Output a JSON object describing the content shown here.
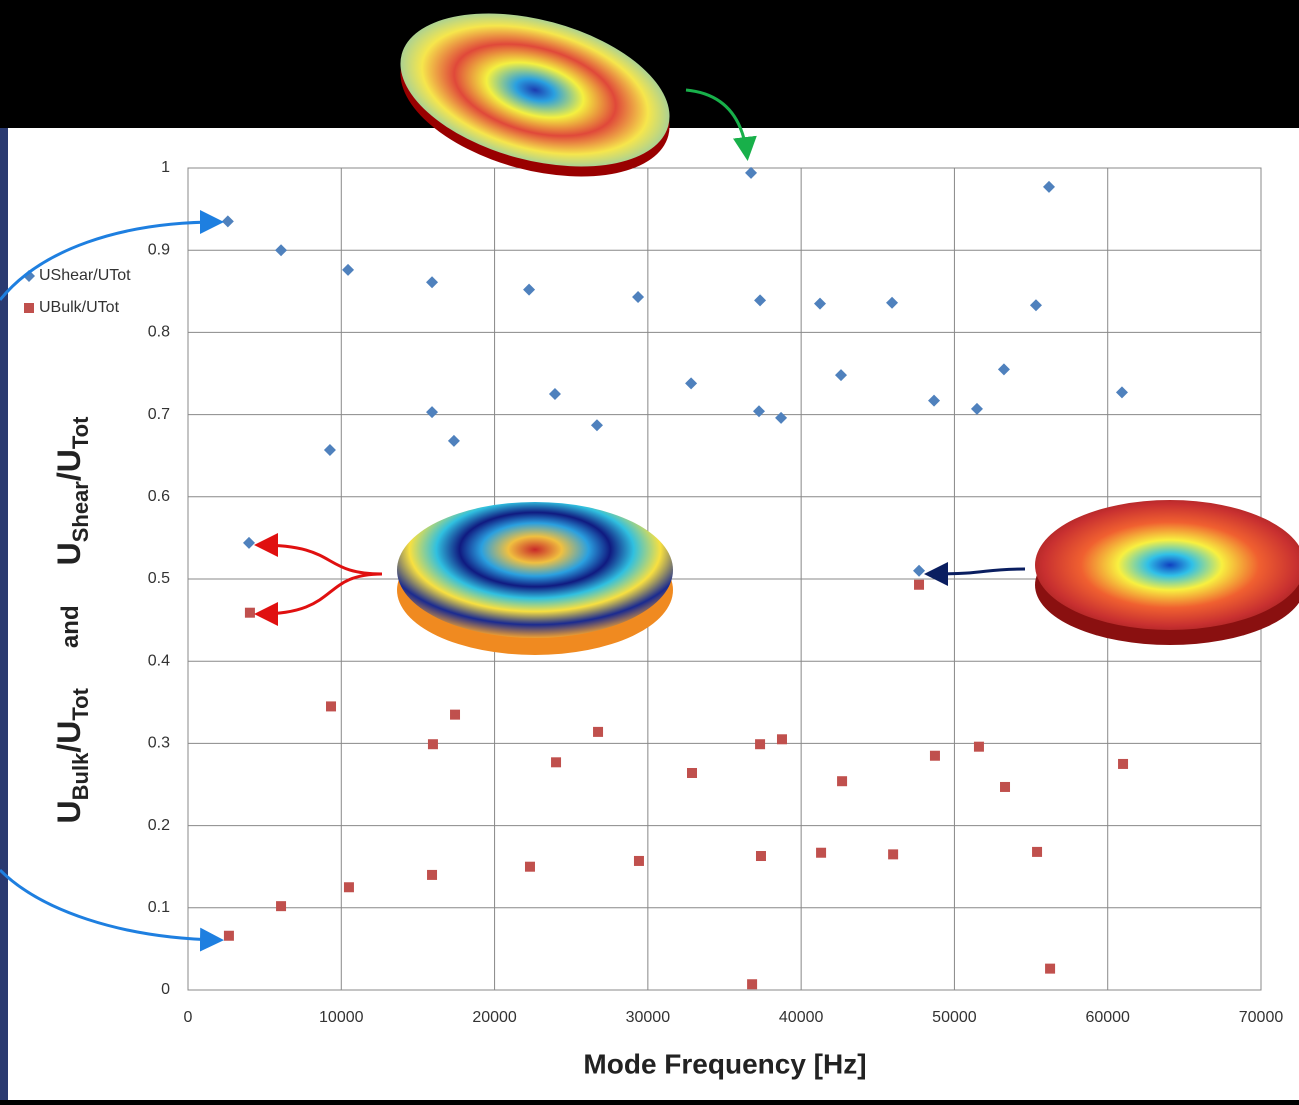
{
  "chart_data": {
    "type": "scatter",
    "x_label": "Mode Frequency [Hz]",
    "y_label_parts": [
      {
        "text": "U"
      },
      {
        "sub": "Bulk"
      },
      {
        "text": "/U"
      },
      {
        "sub": "Tot"
      },
      {
        "text": "and"
      },
      {
        "text": "U"
      },
      {
        "sub": "Shear"
      },
      {
        "text": "/U"
      },
      {
        "sub": "Tot"
      }
    ],
    "xlim": [
      0,
      70000
    ],
    "xticks": [
      0,
      10000,
      20000,
      30000,
      40000,
      50000,
      60000,
      70000
    ],
    "ylim": [
      0,
      1
    ],
    "yticks": [
      0,
      0.1,
      0.2,
      0.3,
      0.4,
      0.5,
      0.6,
      0.7,
      0.8,
      0.9,
      1
    ],
    "grid": true,
    "legend": "left",
    "series": [
      {
        "name": "UShear/UTot",
        "color": "#4f81bd",
        "marker": "diamond",
        "x": [
          2600,
          6070,
          10440,
          15920,
          22250,
          29360,
          36730,
          37320,
          41230,
          45930,
          55320,
          56170,
          9260,
          15920,
          17350,
          23940,
          26680,
          32820,
          37250,
          38690,
          42600,
          48670,
          51470,
          53230,
          60930,
          3980,
          47690
        ],
        "values": [
          0.935,
          0.9,
          0.876,
          0.861,
          0.852,
          0.843,
          0.994,
          0.839,
          0.835,
          0.836,
          0.833,
          0.977,
          0.657,
          0.703,
          0.668,
          0.725,
          0.687,
          0.738,
          0.704,
          0.696,
          0.748,
          0.717,
          0.707,
          0.755,
          0.727,
          0.544,
          0.51
        ]
      },
      {
        "name": "UBulk/UTot",
        "color": "#c0504d",
        "marker": "square",
        "x": [
          2670,
          6070,
          10500,
          15920,
          22310,
          29420,
          36800,
          37380,
          41300,
          46000,
          55390,
          56240,
          9330,
          15980,
          17420,
          24010,
          26750,
          32880,
          37320,
          38750,
          42670,
          48730,
          51600,
          53300,
          61000,
          4040,
          47690
        ],
        "values": [
          0.066,
          0.102,
          0.125,
          0.14,
          0.15,
          0.157,
          0.007,
          0.163,
          0.167,
          0.165,
          0.168,
          0.026,
          0.345,
          0.299,
          0.335,
          0.277,
          0.314,
          0.264,
          0.299,
          0.305,
          0.254,
          0.285,
          0.296,
          0.247,
          0.275,
          0.459,
          0.493
        ]
      }
    ]
  }
}
